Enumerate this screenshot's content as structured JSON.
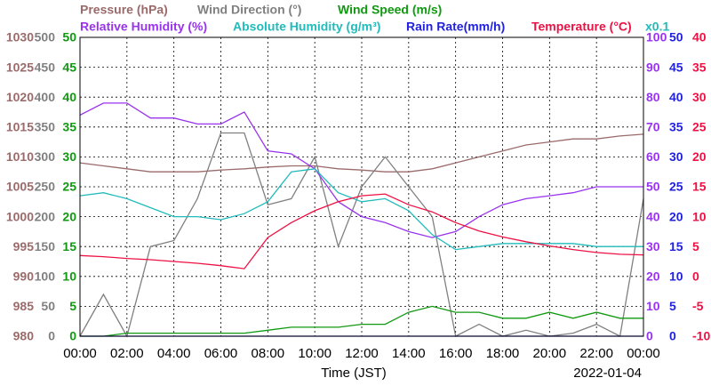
{
  "chart_data": {
    "type": "line",
    "x_label": "Time (JST)",
    "date": "2022-01-04",
    "scale_note": "x0.1",
    "x": [
      0,
      1,
      2,
      3,
      4,
      5,
      6,
      7,
      8,
      9,
      10,
      11,
      12,
      13,
      14,
      15,
      16,
      17,
      18,
      19,
      20,
      21,
      22,
      23,
      24
    ],
    "xlim": [
      0,
      24
    ],
    "xticks": [
      {
        "value": 0,
        "label": "00:00"
      },
      {
        "value": 2,
        "label": "02:00"
      },
      {
        "value": 4,
        "label": "04:00"
      },
      {
        "value": 6,
        "label": "06:00"
      },
      {
        "value": 8,
        "label": "08:00"
      },
      {
        "value": 10,
        "label": "10:00"
      },
      {
        "value": 12,
        "label": "12:00"
      },
      {
        "value": 14,
        "label": "14:00"
      },
      {
        "value": 16,
        "label": "16:00"
      },
      {
        "value": 18,
        "label": "18:00"
      },
      {
        "value": 20,
        "label": "20:00"
      },
      {
        "value": 22,
        "label": "22:00"
      },
      {
        "value": 24,
        "label": "00:00"
      }
    ],
    "grid": true,
    "axes": [
      {
        "side": "left",
        "color": "#9b6b6b",
        "lim": [
          980,
          1030
        ],
        "ticks": [
          980,
          985,
          990,
          995,
          1000,
          1005,
          1010,
          1015,
          1020,
          1025,
          1030
        ]
      },
      {
        "side": "left",
        "color": "#808080",
        "lim": [
          0,
          500
        ],
        "ticks": [
          0,
          50,
          100,
          150,
          200,
          250,
          300,
          350,
          400,
          450,
          500
        ]
      },
      {
        "side": "left",
        "color": "#119911",
        "lim": [
          0,
          50
        ],
        "ticks": [
          0,
          5,
          10,
          15,
          20,
          25,
          30,
          35,
          40,
          45,
          50
        ]
      },
      {
        "side": "right",
        "color": "#9933ee",
        "lim": [
          0,
          100
        ],
        "ticks": [
          0,
          10,
          20,
          30,
          40,
          50,
          60,
          70,
          80,
          90,
          100
        ]
      },
      {
        "side": "right",
        "color": "#2222dd",
        "lim": [
          0,
          50
        ],
        "ticks": [
          0,
          5,
          10,
          15,
          20,
          25,
          30,
          35,
          40,
          45,
          50
        ]
      },
      {
        "side": "right",
        "color": "#ee1144",
        "lim": [
          -10,
          40
        ],
        "ticks": [
          -10,
          -5,
          0,
          5,
          10,
          15,
          20,
          25,
          30,
          35,
          40
        ]
      }
    ],
    "series": [
      {
        "name": "Pressure (hPa)",
        "color": "#9b6b6b",
        "axis": 0,
        "values": [
          1009,
          1008.5,
          1008,
          1007.5,
          1007.5,
          1007.5,
          1007.8,
          1008,
          1008.3,
          1008.5,
          1008.5,
          1008,
          1007.8,
          1007.5,
          1007.5,
          1008,
          1009,
          1010,
          1011,
          1012,
          1012.5,
          1013,
          1013,
          1013.5,
          1013.8
        ]
      },
      {
        "name": "Wind Direction (°)",
        "color": "#808080",
        "axis": 1,
        "values": [
          0,
          70,
          0,
          150,
          160,
          230,
          340,
          340,
          220,
          230,
          300,
          150,
          250,
          300,
          250,
          200,
          0,
          20,
          0,
          10,
          0,
          5,
          20,
          0,
          230
        ]
      },
      {
        "name": "Wind Speed (m/s)",
        "color": "#119911",
        "axis": 2,
        "values": [
          0,
          0,
          0.5,
          0.5,
          0.5,
          0.5,
          0.5,
          0.5,
          1,
          1.5,
          1.5,
          1.5,
          2,
          2,
          4,
          5,
          4,
          4,
          3,
          3,
          4,
          3,
          4,
          3,
          3
        ]
      },
      {
        "name": "Relative Humidity (%)",
        "color": "#9933ee",
        "axis": 3,
        "values": [
          74,
          78,
          78,
          73,
          73,
          71,
          71,
          75,
          62,
          61,
          56,
          45,
          40,
          38,
          35,
          33,
          35,
          40,
          44,
          46,
          47,
          48,
          50,
          50,
          50
        ]
      },
      {
        "name": "Absolute Humidity (g/m³)",
        "color": "#22bbbb",
        "axis": 3,
        "values": [
          47,
          48,
          46,
          43,
          40,
          40,
          39,
          41,
          45,
          55,
          56,
          48,
          45,
          46,
          42,
          34,
          29,
          30,
          31,
          31,
          31,
          31,
          30,
          30,
          30
        ]
      },
      {
        "name": "Rain Rate(mm/h)",
        "color": "#2222dd",
        "axis": 4,
        "values": [
          0,
          0,
          0,
          0,
          0,
          0,
          0,
          0,
          0,
          0,
          0,
          0,
          0,
          0,
          0,
          0,
          0,
          0,
          0,
          0,
          0,
          0,
          0,
          0,
          0
        ]
      },
      {
        "name": "Temperature (°C)",
        "color": "#ee1144",
        "axis": 5,
        "values": [
          3.5,
          3.3,
          3,
          2.8,
          2.5,
          2.2,
          1.8,
          1.3,
          6.5,
          9,
          11,
          12.5,
          13.5,
          13.8,
          12,
          10.8,
          9,
          7.6,
          6.6,
          5.8,
          5.1,
          4.5,
          4,
          3.7,
          3.6
        ]
      }
    ]
  }
}
